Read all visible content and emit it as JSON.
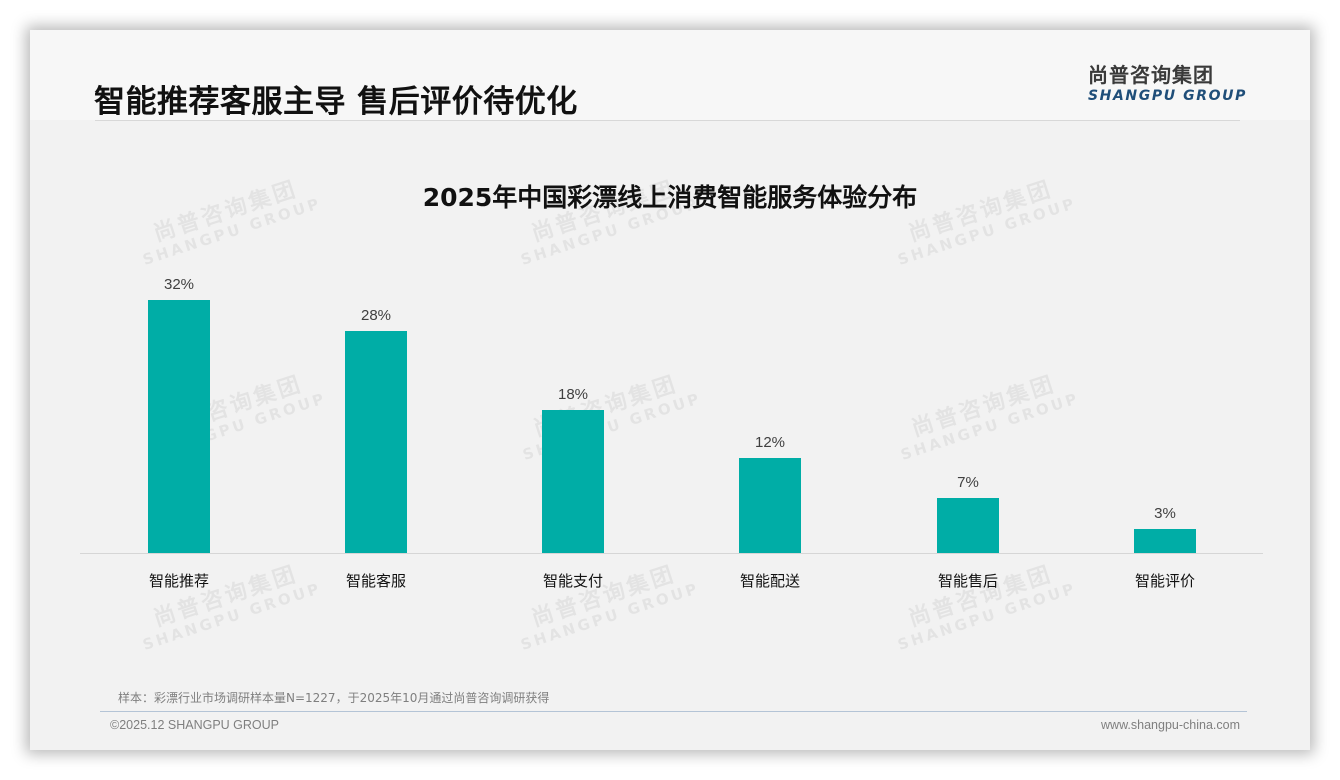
{
  "header": {
    "title": "智能推荐客服主导 售后评价待优化",
    "logo_cn": "尚普咨询集团",
    "logo_en": "SHANGPU GROUP"
  },
  "watermark": {
    "cn": "尚普咨询集团",
    "en": "SHANGPU GROUP"
  },
  "colors": {
    "bar": "#00ADA6",
    "slide_bg": "#F2F2F2",
    "logo_en": "#1F4E79"
  },
  "chart_data": {
    "type": "bar",
    "title": "2025年中国彩漂线上消费智能服务体验分布",
    "categories": [
      "智能推荐",
      "智能客服",
      "智能支付",
      "智能配送",
      "智能售后",
      "智能评价"
    ],
    "values": [
      32,
      28,
      18,
      12,
      7,
      3
    ],
    "value_labels": [
      "32%",
      "28%",
      "18%",
      "12%",
      "7%",
      "3%"
    ],
    "unit": "%",
    "xlabel": "",
    "ylabel": "",
    "ylim": [
      0,
      37
    ],
    "grid": false,
    "legend": "none",
    "y_axis_visible": false,
    "data_labels": true
  },
  "footer": {
    "note": "样本：彩漂行业市场调研样本量N=1227，于2025年10月通过尚普咨询调研获得",
    "copyright": "©2025.12 SHANGPU GROUP",
    "website": "www.shangpu-china.com"
  }
}
